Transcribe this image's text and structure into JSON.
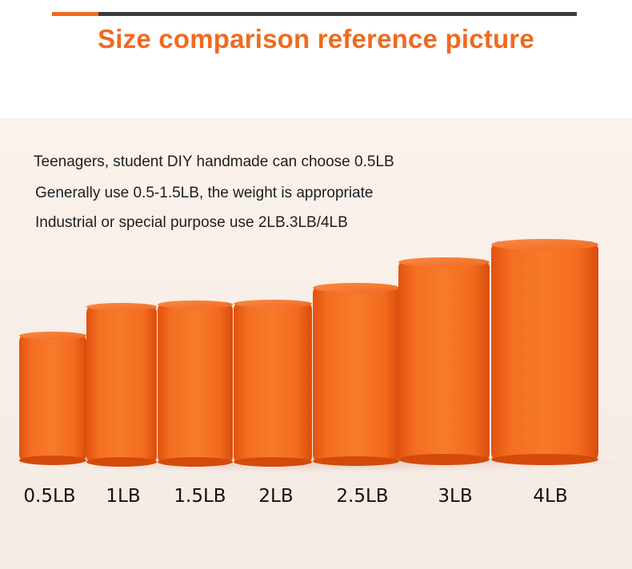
{
  "title": "Size comparison reference picture",
  "colors": {
    "accent": "#f06a1f",
    "title_bar": "#3b3b3b",
    "cylinder": "#f26a1b",
    "background": "#f8eee8"
  },
  "captions": [
    "Teenagers, student DIY handmade can choose 0.5LB",
    "Generally use 0.5-1.5LB, the weight is appropriate",
    "Industrial or special purpose use 2LB.3LB/4LB"
  ],
  "products": [
    {
      "label": "0.5LB"
    },
    {
      "label": "1LB"
    },
    {
      "label": "1.5LB"
    },
    {
      "label": "2LB"
    },
    {
      "label": "2.5LB"
    },
    {
      "label": "3LB"
    },
    {
      "label": "4LB"
    }
  ]
}
